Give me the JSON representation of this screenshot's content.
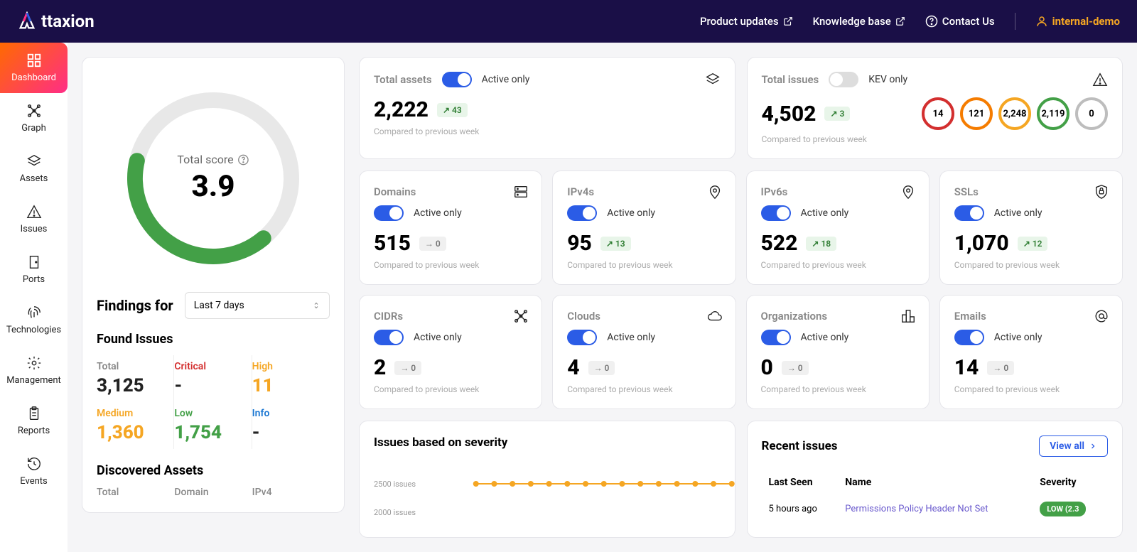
{
  "header": {
    "brand": "ttaxion",
    "links": {
      "product_updates": "Product updates",
      "knowledge_base": "Knowledge base",
      "contact": "Contact Us"
    },
    "user": "internal-demo"
  },
  "sidebar": {
    "items": [
      {
        "label": "Dashboard",
        "icon": "grid"
      },
      {
        "label": "Graph",
        "icon": "graph"
      },
      {
        "label": "Assets",
        "icon": "layers"
      },
      {
        "label": "Issues",
        "icon": "warning"
      },
      {
        "label": "Ports",
        "icon": "door"
      },
      {
        "label": "Technologies",
        "icon": "fingerprint"
      },
      {
        "label": "Management",
        "icon": "gear"
      },
      {
        "label": "Reports",
        "icon": "clipboard"
      },
      {
        "label": "Events",
        "icon": "history"
      }
    ]
  },
  "score": {
    "label": "Total score",
    "value": "3.9",
    "gauge_pct": 0.55,
    "gauge_color": "#43a047",
    "gauge_track": "#e8e8e8"
  },
  "findings": {
    "title": "Findings for",
    "range": "Last 7 days",
    "found_title": "Found Issues",
    "cells": [
      {
        "label": "Total",
        "value": "3,125",
        "cls": "c-total",
        "vcolor": "#222"
      },
      {
        "label": "Critical",
        "value": "-",
        "cls": "c-critical",
        "vcolor": "#222"
      },
      {
        "label": "High",
        "value": "11",
        "cls": "c-high",
        "vcolor": "#f5a623"
      },
      {
        "label": "Medium",
        "value": "1,360",
        "cls": "c-medium",
        "vcolor": "#f5a623"
      },
      {
        "label": "Low",
        "value": "1,754",
        "cls": "c-low",
        "vcolor": "#43a047"
      },
      {
        "label": "Info",
        "value": "-",
        "cls": "c-info",
        "vcolor": "#222"
      }
    ],
    "discovered_title": "Discovered Assets",
    "discovered_cols": [
      "Total",
      "Domain",
      "IPv4"
    ]
  },
  "total_assets": {
    "title": "Total assets",
    "toggle_label": "Active only",
    "toggle_on": true,
    "value": "2,222",
    "trend": "43",
    "trend_dir": "up",
    "sub": "Compared to previous week"
  },
  "total_issues": {
    "title": "Total issues",
    "toggle_label": "KEV only",
    "toggle_on": false,
    "value": "4,502",
    "trend": "3",
    "trend_dir": "up",
    "sub": "Compared to previous week",
    "circles": [
      {
        "v": "14",
        "color": "#d32f2f"
      },
      {
        "v": "121",
        "color": "#f57c00"
      },
      {
        "v": "2,248",
        "color": "#f5a623"
      },
      {
        "v": "2,119",
        "color": "#43a047"
      },
      {
        "v": "0",
        "color": "#bdbdbd"
      }
    ]
  },
  "asset_cards": [
    {
      "title": "Domains",
      "toggle": "Active only",
      "value": "515",
      "trend": "0",
      "trend_dir": "flat",
      "icon": "server"
    },
    {
      "title": "IPv4s",
      "toggle": "Active only",
      "value": "95",
      "trend": "13",
      "trend_dir": "up",
      "icon": "pin"
    },
    {
      "title": "IPv6s",
      "toggle": "Active only",
      "value": "522",
      "trend": "18",
      "trend_dir": "up",
      "icon": "pin"
    },
    {
      "title": "SSLs",
      "toggle": "Active only",
      "value": "1,070",
      "trend": "12",
      "trend_dir": "up",
      "icon": "shield"
    },
    {
      "title": "CIDRs",
      "toggle": "Active only",
      "value": "2",
      "trend": "0",
      "trend_dir": "flat",
      "icon": "graph"
    },
    {
      "title": "Clouds",
      "toggle": "Active only",
      "value": "4",
      "trend": "0",
      "trend_dir": "flat",
      "icon": "cloud"
    },
    {
      "title": "Organizations",
      "toggle": "Active only",
      "value": "0",
      "trend": "0",
      "trend_dir": "flat",
      "icon": "org"
    },
    {
      "title": "Emails",
      "toggle": "Active only",
      "value": "14",
      "trend": "0",
      "trend_dir": "flat",
      "icon": "at"
    }
  ],
  "asset_sub": "Compared to previous week",
  "chart": {
    "title": "Issues based on severity",
    "y_labels": [
      "2500 issues",
      "2000 issues"
    ],
    "series_color": "#f5a623",
    "points": 15
  },
  "recent": {
    "title": "Recent issues",
    "view_all": "View all",
    "cols": [
      "Last Seen",
      "Name",
      "Severity"
    ],
    "rows": [
      {
        "last_seen": "5 hours ago",
        "name": "Permissions Policy Header Not Set",
        "sev": "LOW (2.3"
      }
    ]
  },
  "colors": {
    "primary": "#2b5ce6"
  }
}
